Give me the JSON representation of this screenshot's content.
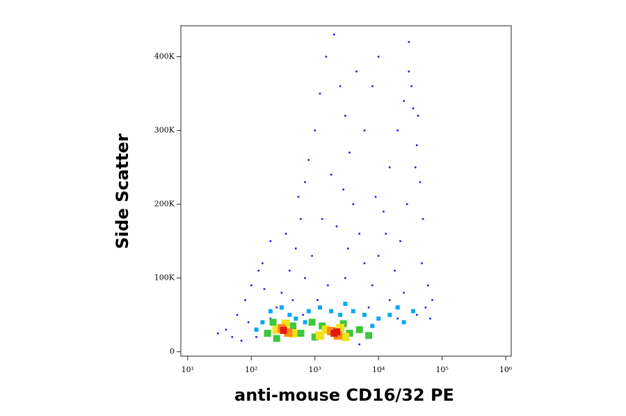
{
  "chart_data": {
    "type": "scatter",
    "x_label": "anti-mouse CD16/32 PE",
    "y_label": "Side Scatter",
    "x_scale": "log",
    "xlim": [
      7.8,
      1220000
    ],
    "xticks": [
      {
        "value": 10,
        "label": "10¹"
      },
      {
        "value": 100,
        "label": "10²"
      },
      {
        "value": 1000,
        "label": "10³"
      },
      {
        "value": 10000,
        "label": "10⁴"
      },
      {
        "value": 100000,
        "label": "10⁵"
      },
      {
        "value": 1000000,
        "label": "10⁶"
      }
    ],
    "ylim": [
      -6000,
      442000
    ],
    "yticks": [
      0,
      {
        "value": 100000,
        "label": "100K"
      },
      {
        "value": 200000,
        "label": "200K"
      },
      {
        "value": 300000,
        "label": "300K"
      },
      {
        "value": 400000,
        "label": "400K"
      }
    ],
    "series": [
      {
        "color": "#1c1cf0",
        "size": 1.3,
        "x": [
          40,
          60,
          80,
          100,
          150,
          200,
          120,
          90,
          300,
          400,
          500,
          600,
          700,
          800,
          1000,
          1200,
          1500,
          2000,
          2500,
          3000,
          3500,
          4000,
          5000,
          6000,
          8000,
          10000,
          12000,
          15000,
          20000,
          25000,
          30000,
          35000,
          40000,
          45000,
          50000,
          60000,
          55000,
          70000,
          30000,
          10000,
          8000,
          6000,
          4500,
          1800,
          1300,
          900,
          700,
          450,
          250,
          160,
          130,
          350,
          550,
          2200,
          2800,
          3300,
          9000,
          13000,
          18000,
          22000,
          28000,
          38000,
          42000,
          33000,
          48000,
          25000,
          15000,
          7000,
          3000,
          1600,
          1100,
          650,
          200,
          70,
          50,
          30,
          5000,
          20000,
          40000,
          65000
        ],
        "values": [
          30000,
          50000,
          70000,
          90000,
          120000,
          150000,
          20000,
          40000,
          80000,
          110000,
          140000,
          180000,
          230000,
          260000,
          300000,
          350000,
          400000,
          430000,
          360000,
          320000,
          270000,
          200000,
          160000,
          120000,
          90000,
          130000,
          190000,
          250000,
          300000,
          340000,
          380000,
          330000,
          280000,
          230000,
          180000,
          90000,
          60000,
          70000,
          420000,
          400000,
          360000,
          300000,
          380000,
          240000,
          180000,
          130000,
          100000,
          70000,
          60000,
          85000,
          110000,
          160000,
          210000,
          170000,
          220000,
          140000,
          210000,
          160000,
          110000,
          150000,
          200000,
          250000,
          320000,
          360000,
          120000,
          80000,
          70000,
          60000,
          100000,
          90000,
          70000,
          50000,
          45000,
          15000,
          20000,
          25000,
          10000,
          45000,
          50000,
          45000
        ]
      },
      {
        "color": "#0aa8f5",
        "size": 3,
        "x": [
          150,
          200,
          300,
          400,
          500,
          800,
          1200,
          1800,
          2500,
          4000,
          6000,
          10000,
          15000,
          25000,
          35000,
          120,
          700,
          3000,
          8000,
          20000
        ],
        "values": [
          40000,
          55000,
          60000,
          50000,
          45000,
          55000,
          60000,
          55000,
          50000,
          55000,
          50000,
          45000,
          50000,
          40000,
          55000,
          30000,
          40000,
          65000,
          35000,
          60000
        ]
      },
      {
        "color": "#3cc83c",
        "size": 5,
        "x": [
          180,
          220,
          450,
          600,
          900,
          1300,
          2800,
          3500,
          5000,
          1000,
          250,
          7000
        ],
        "values": [
          25000,
          40000,
          35000,
          25000,
          40000,
          35000,
          38000,
          25000,
          30000,
          20000,
          18000,
          22000
        ]
      },
      {
        "color": "#f2e21c",
        "size": 6,
        "x": [
          250,
          350,
          450,
          1500,
          2500,
          3000,
          1200
        ],
        "values": [
          30000,
          38000,
          25000,
          30000,
          32000,
          20000,
          22000
        ]
      },
      {
        "color": "#ff8c10",
        "size": 6,
        "x": [
          300,
          380,
          1800,
          2300
        ],
        "values": [
          32000,
          26000,
          28000,
          22000
        ]
      },
      {
        "color": "#e41a10",
        "size": 5,
        "x": [
          2000,
          2200,
          320
        ],
        "values": [
          25000,
          27000,
          29000
        ]
      }
    ]
  }
}
